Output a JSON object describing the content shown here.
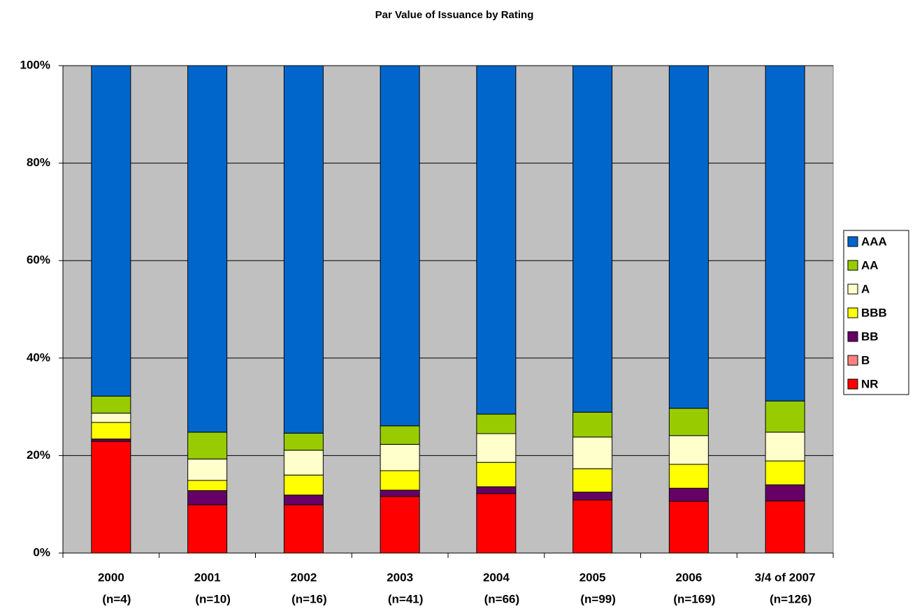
{
  "chart_data": {
    "type": "stacked_bar",
    "title": "Par Value of Issuance by Rating",
    "categories": [
      [
        "2000",
        "(n=4)"
      ],
      [
        "2001",
        "(n=10)"
      ],
      [
        "2002",
        "(n=16)"
      ],
      [
        "2003",
        "(n=41)"
      ],
      [
        "2004",
        "(n=66)"
      ],
      [
        "2005",
        "(n=99)"
      ],
      [
        "2006",
        "(n=169)"
      ],
      [
        "3/4 of 2007",
        "(n=126)"
      ]
    ],
    "series": [
      {
        "name": "NR",
        "color": "#ff0000",
        "values": [
          22.9,
          9.9,
          9.9,
          11.6,
          12.2,
          10.9,
          10.6,
          10.7
        ]
      },
      {
        "name": "B",
        "color": "#ff8080",
        "values": [
          0,
          0,
          0,
          0,
          0,
          0,
          0,
          0
        ]
      },
      {
        "name": "BB",
        "color": "#660066",
        "values": [
          0.5,
          2.9,
          2.0,
          1.3,
          1.4,
          1.6,
          2.7,
          3.3
        ]
      },
      {
        "name": "BBB",
        "color": "#ffff00",
        "values": [
          3.4,
          2.1,
          4.1,
          4.0,
          5.0,
          4.8,
          4.9,
          4.9
        ]
      },
      {
        "name": "A",
        "color": "#ffffcc",
        "values": [
          1.9,
          4.4,
          5.1,
          5.4,
          5.9,
          6.5,
          5.9,
          5.9
        ]
      },
      {
        "name": "AA",
        "color": "#99cc00",
        "values": [
          3.5,
          5.5,
          3.5,
          3.8,
          4.0,
          5.1,
          5.6,
          6.4
        ]
      },
      {
        "name": "AAA",
        "color": "#0066cc",
        "values": [
          67.8,
          75.2,
          75.4,
          73.9,
          71.5,
          71.1,
          70.3,
          68.8
        ]
      }
    ],
    "ylim": [
      0,
      100
    ],
    "yticks": [
      {
        "value": 0,
        "label": "0%"
      },
      {
        "value": 20,
        "label": "20%"
      },
      {
        "value": 40,
        "label": "40%"
      },
      {
        "value": 60,
        "label": "60%"
      },
      {
        "value": 80,
        "label": "80%"
      },
      {
        "value": 100,
        "label": "100%"
      }
    ],
    "grid": true,
    "legend": "right"
  }
}
